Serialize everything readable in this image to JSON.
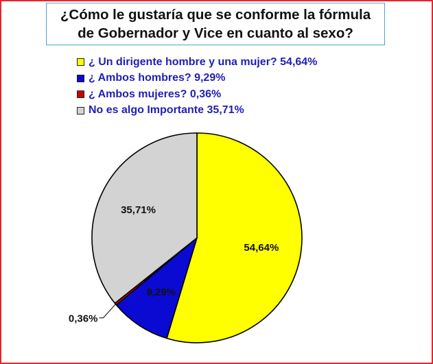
{
  "chart_data": {
    "type": "pie",
    "title": "¿Cómo le gustaría que se conforme la fórmula\nde Gobernador y Vice en cuanto al sexo?",
    "legend_position": "top",
    "slices": [
      {
        "label": "¿ Un dirigente hombre y una mujer? 54,64%",
        "value": 54.64,
        "data_label": "54,64%",
        "color": "#ffff00"
      },
      {
        "label": "¿ Ambos hombres? 9,29%",
        "value": 9.29,
        "data_label": "9,29%",
        "color": "#0a0ad2"
      },
      {
        "label": "¿ Ambos mujeres? 0,36%",
        "value": 0.36,
        "data_label": "0,36%",
        "color": "#cc0000"
      },
      {
        "label": "No es algo Importante 35,71%",
        "value": 35.71,
        "data_label": "35,71%",
        "color": "#d3d3d3"
      }
    ]
  }
}
